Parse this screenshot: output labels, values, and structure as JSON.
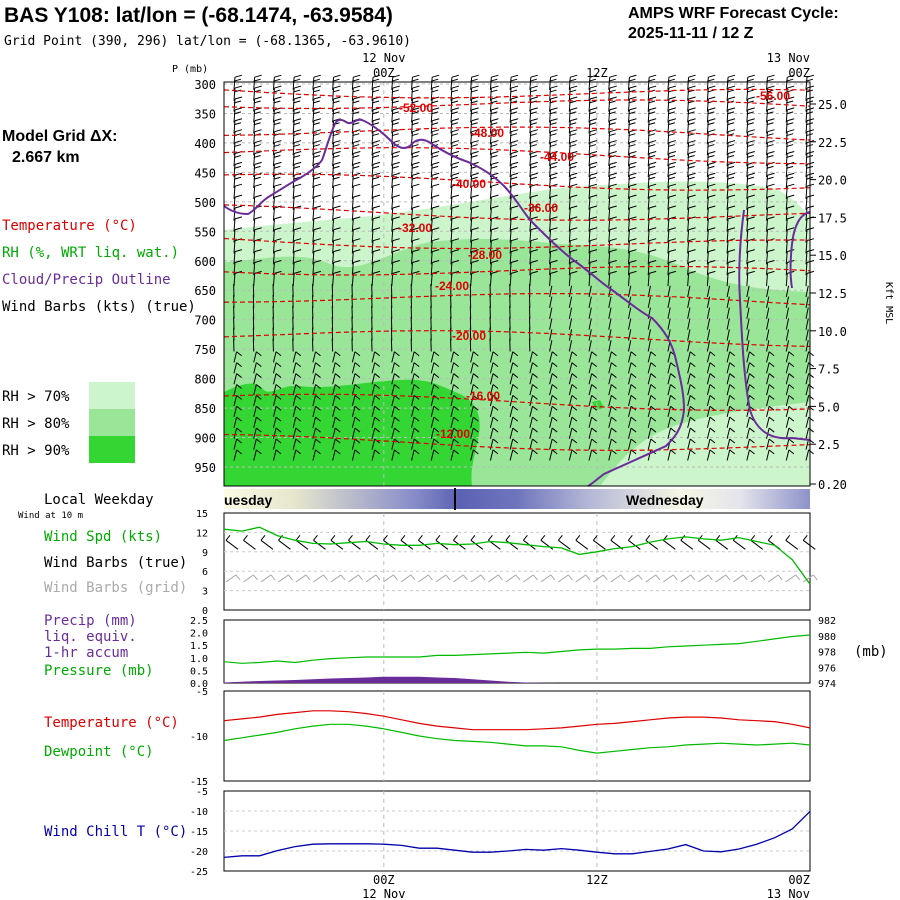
{
  "header": {
    "title": "BAS Y108:  lat/lon = (-68.1474, -63.9584)",
    "grid_point": "Grid Point (390, 296) lat/lon = (-68.1365, -63.9610)",
    "cycle_label": "AMPS WRF Forecast Cycle:",
    "cycle_value": "2025-11-11 / 12  Z",
    "model_grid_label": "Model Grid ΔX:",
    "model_grid_value": "2.667 km"
  },
  "time_axis": {
    "top_labels": [
      {
        "date": "12 Nov",
        "time": "00Z",
        "hour": 12
      },
      {
        "date": "",
        "time": "12Z",
        "hour": 24
      },
      {
        "date": "13 Nov",
        "time": "00Z",
        "hour": 36
      }
    ],
    "bottom_labels": [
      {
        "time": "00Z",
        "date": "12 Nov",
        "hour": 12
      },
      {
        "time": "12Z",
        "date": "",
        "hour": 24
      },
      {
        "time": "00Z",
        "date": "13 Nov",
        "hour": 36
      }
    ],
    "range_hours": [
      3,
      36
    ]
  },
  "legend": {
    "temperature": "Temperature (°C)",
    "rh": "RH (%, WRT liq. wat.)",
    "cloud": "Cloud/Precip Outline",
    "wind": "Wind Barbs (kts) (true)",
    "rh70": "RH > 70%",
    "rh80": "RH > 80%",
    "rh90": "RH > 90%",
    "rh70_color": "#ccf5cc",
    "rh80_color": "#99e699",
    "rh90_color": "#33d633"
  },
  "weekday": {
    "label": "Local Weekday",
    "wind_at": "Wind at 10 m",
    "day1": "uesday",
    "day2": "Wednesday"
  },
  "panel_labels": {
    "wspd": "Wind Spd (kts)",
    "wbarb_true": "Wind Barbs (true)",
    "wbarb_grid": "Wind Barbs (grid)",
    "precip1": "Precip (mm)",
    "precip2": "liq. equiv.",
    "precip3": "1-hr accum",
    "pressure": "Pressure (mb)",
    "mb_unit": "(mb)",
    "temp": "Temperature (°C)",
    "dewp": "Dewpoint (°C)",
    "wchill": "Wind Chill T (°C)"
  },
  "colors": {
    "temperature": "#dd0000",
    "green": "#00bb00",
    "purple": "#6a2c99",
    "blue": "#0000aa",
    "gray": "#aaaaaa"
  },
  "chart_data": [
    {
      "type": "heatmap",
      "title": "Time-height cross section",
      "ylabel": "P (mb)",
      "y2label": "Kft MSL",
      "p_ticks": [
        "300",
        "350",
        "400",
        "450",
        "500",
        "550",
        "600",
        "650",
        "700",
        "750",
        "800",
        "850",
        "900",
        "950"
      ],
      "kft_ticks": [
        "25.0",
        "22.5",
        "20.0",
        "17.5",
        "15.0",
        "12.5",
        "10.0",
        "7.5",
        "5.0",
        "2.5",
        "0.20"
      ],
      "isotherm_labels": [
        "-56.00",
        "-52.00",
        "-48.00",
        "-44.00",
        "-40.00",
        "-36.00",
        "-32.00",
        "-28.00",
        "-24.00",
        "-20.00",
        "-16.00",
        "-12.00"
      ],
      "isotherms": [
        {
          "value": -56,
          "pressure": 310
        },
        {
          "value": -52,
          "pressure": 330
        },
        {
          "value": -48,
          "pressure": 378
        },
        {
          "value": -44,
          "pressure": 415
        },
        {
          "value": -40,
          "pressure": 462
        },
        {
          "value": -36,
          "pressure": 515
        },
        {
          "value": -32,
          "pressure": 565
        },
        {
          "value": -28,
          "pressure": 612
        },
        {
          "value": -24,
          "pressure": 660
        },
        {
          "value": -20,
          "pressure": 725
        },
        {
          "value": -16,
          "pressure": 835
        },
        {
          "value": -12,
          "pressure": 905
        }
      ]
    },
    {
      "type": "line",
      "title": "Wind speed",
      "ylabel": "kts",
      "ylim": [
        0,
        15
      ],
      "yticks": [
        "15",
        "12",
        "9",
        "6",
        "3",
        "0"
      ],
      "x": [
        3,
        4,
        5,
        6,
        7,
        8,
        9,
        10,
        11,
        12,
        13,
        14,
        15,
        16,
        17,
        18,
        19,
        20,
        21,
        22,
        23,
        24,
        25,
        26,
        27,
        28,
        29,
        30,
        31,
        32,
        33,
        34,
        35,
        36
      ],
      "series": [
        {
          "name": "Wind Spd",
          "values": [
            12.5,
            12.2,
            12.8,
            11.5,
            10.8,
            10.3,
            10.2,
            10.4,
            10.6,
            10.2,
            10.0,
            10.0,
            10.3,
            10.1,
            10.2,
            10.6,
            10.4,
            10.1,
            9.8,
            9.6,
            8.6,
            9.0,
            9.5,
            9.8,
            10.5,
            11.0,
            11.3,
            11.0,
            10.8,
            11.2,
            10.6,
            10.0,
            7.8,
            4.0
          ]
        }
      ]
    },
    {
      "type": "bar",
      "title": "Precip and pressure",
      "ylabel": "mm",
      "ylim": [
        0,
        2.5
      ],
      "yticks": [
        "2.5",
        "2.0",
        "1.5",
        "1.0",
        "0.5",
        "0.0"
      ],
      "y2lim": [
        974,
        982
      ],
      "y2ticks": [
        "982",
        "980",
        "978",
        "976",
        "974"
      ],
      "x": [
        3,
        4,
        5,
        6,
        7,
        8,
        9,
        10,
        11,
        12,
        13,
        14,
        15,
        16,
        17,
        18,
        19,
        20,
        21,
        22,
        23,
        24,
        25,
        26,
        27,
        28,
        29,
        30,
        31,
        32,
        33,
        34,
        35,
        36
      ],
      "series": [
        {
          "name": "Precip",
          "values": [
            0.02,
            0.05,
            0.08,
            0.1,
            0.12,
            0.15,
            0.18,
            0.2,
            0.22,
            0.25,
            0.25,
            0.25,
            0.22,
            0.2,
            0.15,
            0.1,
            0.05,
            0.02,
            0.01,
            0.0,
            0.0,
            0.0,
            0.0,
            0.0,
            0.0,
            0.0,
            0.0,
            0.0,
            0.0,
            0.0,
            0.0,
            0.0,
            0.0,
            0.0
          ]
        },
        {
          "name": "Pressure",
          "values": [
            976.7,
            976.5,
            976.6,
            976.8,
            976.6,
            976.9,
            977.1,
            977.2,
            977.3,
            977.3,
            977.3,
            977.3,
            977.5,
            977.5,
            977.6,
            977.7,
            977.8,
            977.9,
            977.8,
            978.0,
            978.2,
            978.3,
            978.3,
            978.4,
            978.4,
            978.6,
            978.7,
            978.8,
            978.9,
            979.0,
            979.3,
            979.6,
            979.9,
            980.1
          ]
        }
      ]
    },
    {
      "type": "line",
      "title": "Temperature and dewpoint",
      "ylim": [
        -15,
        -5
      ],
      "yticks": [
        "-5",
        "-10",
        "-15"
      ],
      "x": [
        3,
        4,
        5,
        6,
        7,
        8,
        9,
        10,
        11,
        12,
        13,
        14,
        15,
        16,
        17,
        18,
        19,
        20,
        21,
        22,
        23,
        24,
        25,
        26,
        27,
        28,
        29,
        30,
        31,
        32,
        33,
        34,
        35,
        36
      ],
      "series": [
        {
          "name": "Temperature",
          "values": [
            -8.3,
            -8.1,
            -7.9,
            -7.6,
            -7.4,
            -7.2,
            -7.2,
            -7.3,
            -7.5,
            -7.8,
            -8.2,
            -8.6,
            -8.9,
            -9.1,
            -9.3,
            -9.3,
            -9.3,
            -9.3,
            -9.2,
            -9.1,
            -8.9,
            -8.7,
            -8.6,
            -8.4,
            -8.2,
            -8.0,
            -7.9,
            -7.9,
            -8.0,
            -8.2,
            -8.3,
            -8.4,
            -8.7,
            -9.1
          ]
        },
        {
          "name": "Dewpoint",
          "values": [
            -10.5,
            -10.2,
            -9.9,
            -9.6,
            -9.2,
            -8.9,
            -8.7,
            -8.7,
            -8.9,
            -9.2,
            -9.6,
            -10.0,
            -10.3,
            -10.5,
            -10.6,
            -10.7,
            -10.9,
            -11.1,
            -11.1,
            -11.2,
            -11.6,
            -11.9,
            -11.7,
            -11.5,
            -11.3,
            -11.2,
            -11.0,
            -10.9,
            -10.8,
            -10.9,
            -11.0,
            -10.9,
            -10.8,
            -11.0
          ]
        }
      ]
    },
    {
      "type": "line",
      "title": "Wind chill",
      "ylim": [
        -25,
        -5
      ],
      "yticks": [
        "-5",
        "-10",
        "-15",
        "-20",
        "-25"
      ],
      "x": [
        3,
        4,
        5,
        6,
        7,
        8,
        9,
        10,
        11,
        12,
        13,
        14,
        15,
        16,
        17,
        18,
        19,
        20,
        21,
        22,
        23,
        24,
        25,
        26,
        27,
        28,
        29,
        30,
        31,
        32,
        33,
        34,
        35,
        36
      ],
      "series": [
        {
          "name": "Wind Chill",
          "values": [
            -21.6,
            -21.2,
            -21.2,
            -19.9,
            -18.9,
            -18.3,
            -18.2,
            -18.2,
            -18.2,
            -18.3,
            -18.6,
            -19.3,
            -19.3,
            -19.8,
            -20.3,
            -20.3,
            -20.0,
            -19.6,
            -19.8,
            -19.4,
            -19.8,
            -20.3,
            -20.7,
            -20.7,
            -20.1,
            -19.5,
            -18.4,
            -20.0,
            -20.2,
            -19.5,
            -18.3,
            -16.7,
            -14.5,
            -10.1
          ]
        }
      ]
    }
  ]
}
